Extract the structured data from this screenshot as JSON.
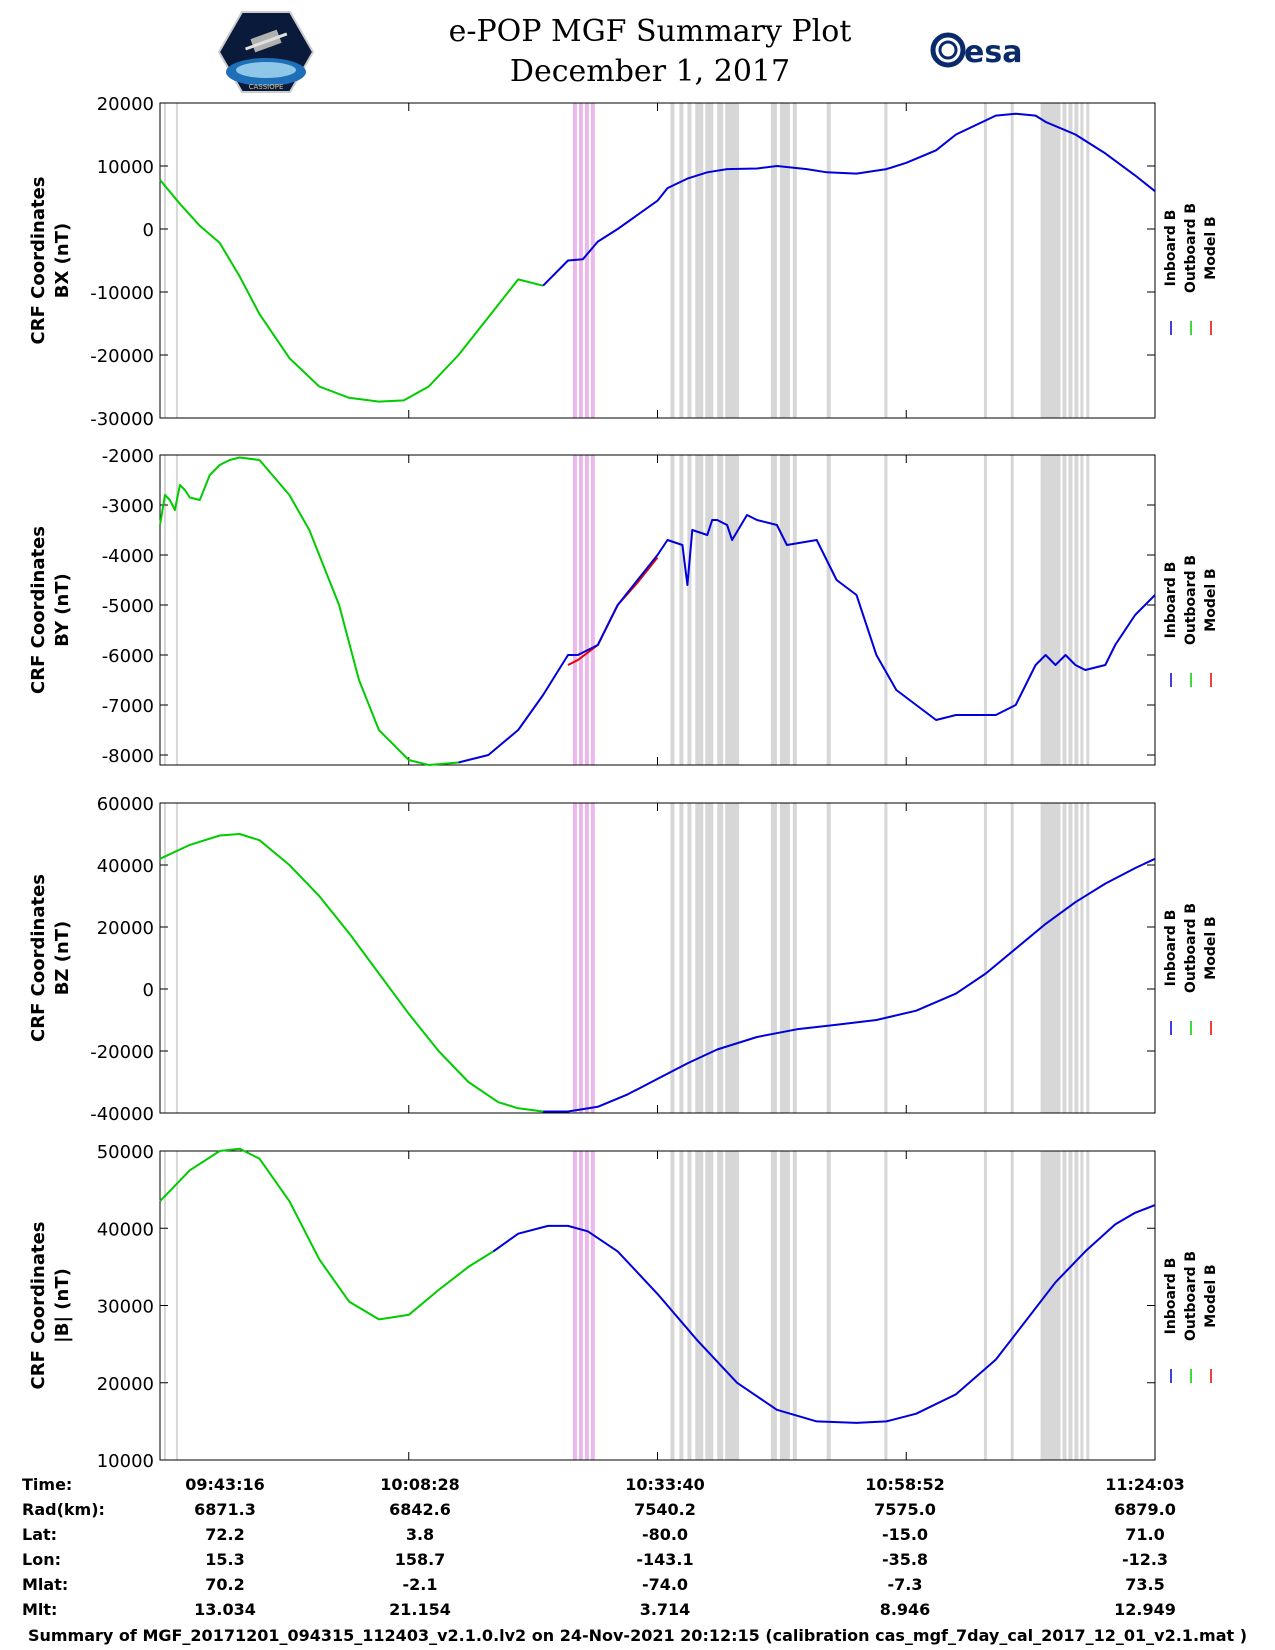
{
  "header": {
    "title_line_1": "e-POP MGF Summary Plot",
    "title_line_2": "December 1, 2017",
    "esa_logo_text": "esa",
    "mission_logo_text": "CASSIOPE"
  },
  "colors": {
    "inboard": "#0000dd",
    "outboard": "#00cc00",
    "model": "#ee0000",
    "gap": "#d3d3d3",
    "gap_magenta": "#e8b0e8"
  },
  "chart_data": [
    {
      "type": "line",
      "ylabel_line_1": "CRF Coordinates",
      "ylabel_line_2": "BX (nT)",
      "ylim": [
        -30000,
        20000
      ],
      "yticks": [
        20000,
        10000,
        0,
        -10000,
        -20000,
        -30000
      ],
      "ytick_labels": [
        "20000",
        "10000",
        "0",
        "-10000",
        "-20000",
        "-30000"
      ],
      "legend": [
        "Inboard B",
        "Outboard B",
        "Model B"
      ],
      "series": [
        {
          "name": "Outboard B",
          "x": [
            0,
            0.02,
            0.04,
            0.06,
            0.08,
            0.1,
            0.13,
            0.16,
            0.19,
            0.22,
            0.245,
            0.27,
            0.3,
            0.33,
            0.36,
            0.385
          ],
          "values": [
            7800,
            4000,
            500,
            -2200,
            -7500,
            -13500,
            -20500,
            -25000,
            -26800,
            -27400,
            -27200,
            -25000,
            -20000,
            -14000,
            -8000,
            -9000
          ]
        },
        {
          "name": "Inboard B",
          "x": [
            0.385,
            0.41,
            0.425,
            0.44,
            0.46,
            0.5,
            0.51,
            0.53,
            0.55,
            0.57,
            0.6,
            0.62,
            0.65,
            0.67,
            0.7,
            0.73,
            0.75,
            0.78,
            0.8,
            0.84,
            0.86,
            0.88,
            0.89,
            0.92,
            0.95,
            0.98,
            1.0
          ],
          "values": [
            -9000,
            -5000,
            -4800,
            -2000,
            0,
            4500,
            6500,
            8000,
            9000,
            9500,
            9600,
            10000,
            9500,
            9000,
            8800,
            9500,
            10500,
            12500,
            15000,
            18000,
            18300,
            18000,
            17000,
            15000,
            12000,
            8500,
            6000
          ]
        }
      ],
      "inboard_connects": true
    },
    {
      "type": "line",
      "ylabel_line_1": "CRF Coordinates",
      "ylabel_line_2": "BY (nT)",
      "ylim": [
        -8200,
        -2000
      ],
      "yticks": [
        -2000,
        -3000,
        -4000,
        -5000,
        -6000,
        -7000,
        -8000
      ],
      "ytick_labels": [
        "-2000",
        "-3000",
        "-4000",
        "-5000",
        "-6000",
        "-7000",
        "-8000"
      ],
      "legend": [
        "Inboard B",
        "Outboard B",
        "Model B"
      ],
      "series": [
        {
          "name": "Outboard B",
          "x": [
            0,
            0.005,
            0.01,
            0.015,
            0.02,
            0.025,
            0.03,
            0.04,
            0.05,
            0.06,
            0.07,
            0.08,
            0.1,
            0.13,
            0.15,
            0.18,
            0.2,
            0.22,
            0.25,
            0.27,
            0.3
          ],
          "values": [
            -3400,
            -2800,
            -2900,
            -3100,
            -2600,
            -2700,
            -2850,
            -2900,
            -2400,
            -2200,
            -2100,
            -2050,
            -2100,
            -2800,
            -3500,
            -5000,
            -6500,
            -7500,
            -8100,
            -8200,
            -8150
          ]
        },
        {
          "name": "Inboard B",
          "x": [
            0.3,
            0.33,
            0.36,
            0.385,
            0.41,
            0.42,
            0.44,
            0.46,
            0.48,
            0.5,
            0.51,
            0.525,
            0.53,
            0.535,
            0.55,
            0.555,
            0.56,
            0.57,
            0.575,
            0.59,
            0.6,
            0.62,
            0.63,
            0.66,
            0.68,
            0.7,
            0.72,
            0.74,
            0.76,
            0.78,
            0.8,
            0.84,
            0.86,
            0.88,
            0.89,
            0.9,
            0.91,
            0.92,
            0.93,
            0.95,
            0.96,
            0.98,
            1.0
          ],
          "values": [
            -8150,
            -8000,
            -7500,
            -6800,
            -6000,
            -6000,
            -5800,
            -5000,
            -4500,
            -4000,
            -3700,
            -3800,
            -4600,
            -3500,
            -3600,
            -3300,
            -3300,
            -3400,
            -3700,
            -3200,
            -3300,
            -3400,
            -3800,
            -3700,
            -4500,
            -4800,
            -6000,
            -6700,
            -7000,
            -7300,
            -7200,
            -7200,
            -7000,
            -6200,
            -6000,
            -6200,
            -6000,
            -6200,
            -6300,
            -6200,
            -5800,
            -5200,
            -4800
          ]
        },
        {
          "name": "Model B",
          "x": [
            0.41,
            0.42,
            0.44,
            0.46,
            0.48,
            0.5
          ],
          "values": [
            -6200,
            -6100,
            -5800,
            -5000,
            -4550,
            -4050
          ]
        }
      ],
      "inboard_connects": true
    },
    {
      "type": "line",
      "ylabel_line_1": "CRF Coordinates",
      "ylabel_line_2": "BZ (nT)",
      "ylim": [
        -40000,
        60000
      ],
      "yticks": [
        60000,
        40000,
        20000,
        0,
        -20000,
        -40000
      ],
      "ytick_labels": [
        "60000",
        "40000",
        "20000",
        "0",
        "-20000",
        "-40000"
      ],
      "legend": [
        "Inboard B",
        "Outboard B",
        "Model B"
      ],
      "series": [
        {
          "name": "Outboard B",
          "x": [
            0,
            0.03,
            0.06,
            0.08,
            0.1,
            0.13,
            0.16,
            0.19,
            0.22,
            0.25,
            0.28,
            0.31,
            0.34,
            0.36,
            0.385
          ],
          "values": [
            42000,
            46500,
            49500,
            50000,
            48000,
            40000,
            30000,
            18000,
            5000,
            -8000,
            -20000,
            -30000,
            -36500,
            -38500,
            -39500
          ]
        },
        {
          "name": "Inboard B",
          "x": [
            0.385,
            0.41,
            0.44,
            0.47,
            0.5,
            0.53,
            0.56,
            0.6,
            0.64,
            0.68,
            0.72,
            0.76,
            0.8,
            0.83,
            0.86,
            0.89,
            0.92,
            0.95,
            0.98,
            1.0
          ],
          "values": [
            -39500,
            -39500,
            -38000,
            -34000,
            -29000,
            -24000,
            -19500,
            -15500,
            -13000,
            -11500,
            -10000,
            -7000,
            -1500,
            5000,
            13000,
            21000,
            28000,
            34000,
            39000,
            42000
          ]
        }
      ],
      "inboard_connects": true
    },
    {
      "type": "line",
      "ylabel_line_1": "CRF Coordinates",
      "ylabel_line_2": "|B| (nT)",
      "ylim": [
        10000,
        50000
      ],
      "yticks": [
        50000,
        40000,
        30000,
        20000,
        10000
      ],
      "ytick_labels": [
        "50000",
        "40000",
        "30000",
        "20000",
        "10000"
      ],
      "legend": [
        "Inboard B",
        "Outboard B",
        "Model B"
      ],
      "series": [
        {
          "name": "Outboard B",
          "x": [
            0,
            0.03,
            0.06,
            0.08,
            0.1,
            0.13,
            0.16,
            0.19,
            0.22,
            0.25,
            0.28,
            0.31,
            0.335
          ],
          "values": [
            43500,
            47500,
            50000,
            50300,
            49000,
            43500,
            36000,
            30500,
            28200,
            28800,
            32000,
            35000,
            37000
          ]
        },
        {
          "name": "Inboard B",
          "x": [
            0.335,
            0.36,
            0.39,
            0.41,
            0.43,
            0.46,
            0.5,
            0.54,
            0.58,
            0.62,
            0.66,
            0.7,
            0.73,
            0.76,
            0.8,
            0.84,
            0.87,
            0.9,
            0.93,
            0.96,
            0.98,
            1.0
          ],
          "values": [
            37000,
            39300,
            40300,
            40300,
            39600,
            37000,
            31500,
            25500,
            20000,
            16500,
            15000,
            14800,
            15000,
            16000,
            18500,
            23000,
            28000,
            33000,
            37000,
            40500,
            42000,
            43000
          ]
        }
      ],
      "inboard_connects": true
    }
  ],
  "gap_bands_fraction": [
    {
      "x": 0.004,
      "w": 0.002
    },
    {
      "x": 0.016,
      "w": 0.002
    },
    {
      "x": 0.415,
      "w": 0.004
    },
    {
      "x": 0.421,
      "w": 0.004
    },
    {
      "x": 0.427,
      "w": 0.004
    },
    {
      "x": 0.433,
      "w": 0.004
    },
    {
      "x": 0.513,
      "w": 0.004
    },
    {
      "x": 0.522,
      "w": 0.004
    },
    {
      "x": 0.53,
      "w": 0.004
    },
    {
      "x": 0.538,
      "w": 0.008
    },
    {
      "x": 0.548,
      "w": 0.008
    },
    {
      "x": 0.56,
      "w": 0.006
    },
    {
      "x": 0.568,
      "w": 0.014
    },
    {
      "x": 0.614,
      "w": 0.006
    },
    {
      "x": 0.623,
      "w": 0.01
    },
    {
      "x": 0.636,
      "w": 0.004
    },
    {
      "x": 0.67,
      "w": 0.004
    },
    {
      "x": 0.728,
      "w": 0.003
    },
    {
      "x": 0.828,
      "w": 0.003
    },
    {
      "x": 0.855,
      "w": 0.003
    },
    {
      "x": 0.885,
      "w": 0.02
    },
    {
      "x": 0.907,
      "w": 0.004
    },
    {
      "x": 0.913,
      "w": 0.004
    },
    {
      "x": 0.919,
      "w": 0.004
    },
    {
      "x": 0.925,
      "w": 0.003
    },
    {
      "x": 0.931,
      "w": 0.003
    }
  ],
  "info_rows": {
    "labels": [
      "Time:",
      "Rad(km):",
      "Lat:",
      "Lon:",
      "Mlat:",
      "Mlt:"
    ],
    "columns": [
      [
        "09:43:16",
        "6871.3",
        "72.2",
        "15.3",
        "70.2",
        "13.034"
      ],
      [
        "10:08:28",
        "6842.6",
        "3.8",
        "158.7",
        "-2.1",
        "21.154"
      ],
      [
        "10:33:40",
        "7540.2",
        "-80.0",
        "-143.1",
        "-74.0",
        "3.714"
      ],
      [
        "10:58:52",
        "7575.0",
        "-15.0",
        "-35.8",
        "-7.3",
        "8.946"
      ],
      [
        "11:24:03",
        "6879.0",
        "71.0",
        "-12.3",
        "73.5",
        "12.949"
      ]
    ]
  },
  "footer": "Summary of MGF_20171201_094315_112403_v2.1.0.lv2 on 24-Nov-2021 20:12:15 (calibration cas_mgf_7day_cal_2017_12_01_v2.1.mat )"
}
